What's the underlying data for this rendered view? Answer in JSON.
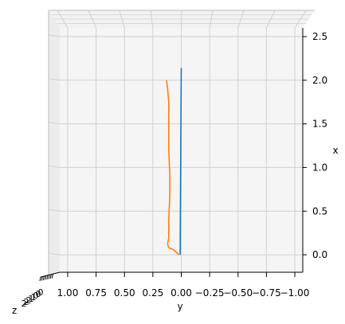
{
  "chart_data": {
    "type": "line",
    "projection": "3d",
    "title": "",
    "xlabel": "x",
    "ylabel": "y",
    "zlabel": "z",
    "x_axis": {
      "label": "x",
      "range": [
        -0.2,
        2.6
      ],
      "ticks": [
        0.0,
        0.5,
        1.0,
        1.5,
        2.0,
        2.5
      ],
      "tick_labels": [
        "0.0",
        "0.5",
        "1.0",
        "1.5",
        "2.0",
        "2.5"
      ]
    },
    "y_axis": {
      "label": "y",
      "range": [
        1.07,
        -1.07
      ],
      "ticks": [
        1.0,
        0.75,
        0.5,
        0.25,
        0.0,
        -0.25,
        -0.5,
        -0.75,
        -1.0
      ],
      "tick_labels": [
        "1.00",
        "0.75",
        "0.50",
        "0.25",
        "0.00",
        "−0.25",
        "−0.50",
        "−0.75",
        "−1.00"
      ]
    },
    "z_axis": {
      "label": "z",
      "tick_labels": [
        "2",
        "2",
        "2",
        "1",
        "1",
        "0",
        "0",
        "0"
      ]
    },
    "grid": true,
    "series": [
      {
        "color": "#1f77b4",
        "points": [
          [
            0.0,
            0.01
          ],
          [
            2.14,
            0.0
          ]
        ]
      },
      {
        "color": "#ff7f0e",
        "points": [
          [
            0.0,
            0.02
          ],
          [
            0.06,
            0.07
          ],
          [
            0.08,
            0.11
          ],
          [
            0.12,
            0.12
          ],
          [
            0.2,
            0.11
          ],
          [
            0.4,
            0.11
          ],
          [
            0.7,
            0.1
          ],
          [
            0.9,
            0.1
          ],
          [
            1.2,
            0.11
          ],
          [
            1.5,
            0.11
          ],
          [
            1.75,
            0.11
          ],
          [
            1.9,
            0.12
          ],
          [
            2.0,
            0.13
          ]
        ]
      }
    ]
  }
}
